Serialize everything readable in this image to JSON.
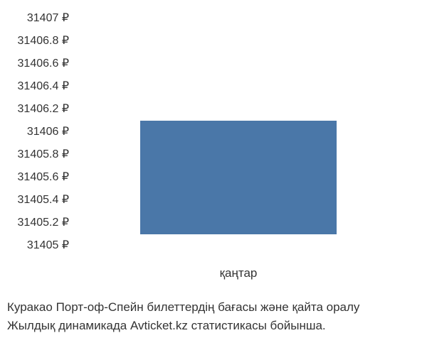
{
  "chart": {
    "type": "bar",
    "categories": [
      "қаңтар"
    ],
    "values": [
      31406
    ],
    "bar_color": "#4a77a8",
    "background_color": "#ffffff",
    "ylim": [
      31405,
      31407
    ],
    "ytick_step": 0.2,
    "ytick_labels": [
      "31407 ₽",
      "31406.8 ₽",
      "31406.6 ₽",
      "31406.4 ₽",
      "31406.2 ₽",
      "31406 ₽",
      "31405.8 ₽",
      "31405.6 ₽",
      "31405.4 ₽",
      "31405.2 ₽",
      "31405 ₽"
    ],
    "x_label": "қаңтар",
    "label_fontsize": 16,
    "text_color": "#333333",
    "bar_width": 0.6
  },
  "caption": {
    "line1": "Куракао Порт-оф-Спейн билеттердің бағасы және қайта оралу",
    "line2": "Жылдық динамикада Avticket.kz статистикасы бойынша."
  }
}
